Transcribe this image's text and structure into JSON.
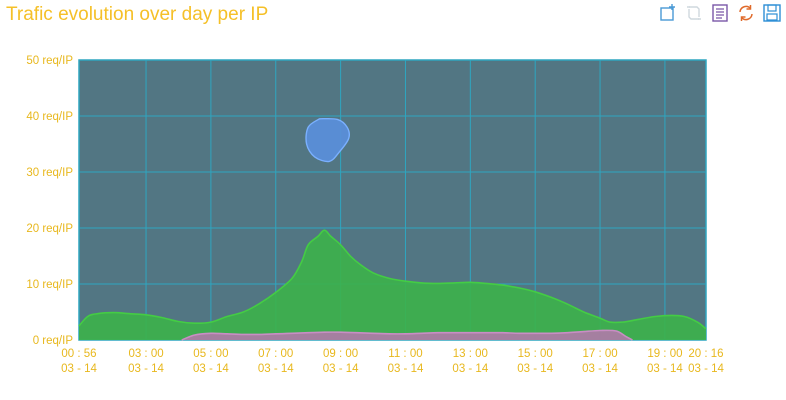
{
  "title": "Trafic evolution over day per IP",
  "toolbar": [
    {
      "name": "zoom-icon",
      "label": "Zoom"
    },
    {
      "name": "zoom-reset-icon",
      "label": "Reset zoom"
    },
    {
      "name": "data-view-icon",
      "label": "Data view"
    },
    {
      "name": "restore-icon",
      "label": "Restore"
    },
    {
      "name": "save-image-icon",
      "label": "Save as image"
    }
  ],
  "colors": {
    "plot_bg": "#527683",
    "grid": "#2ea6c0",
    "title": "#f5c028",
    "tick": "#e8b81e",
    "green_fill": "#3cb34a",
    "green_line": "#44cc44",
    "pink_fill": "#b07aa8",
    "pink_line": "#c98dc4",
    "blue_fill": "#5a8ed8",
    "blue_line": "#7ab0ff"
  },
  "chart_data": {
    "type": "area",
    "title": "Trafic evolution over day per IP",
    "y_unit": "req/IP",
    "ylim": [
      0,
      50
    ],
    "y_ticks": [
      0,
      10,
      20,
      30,
      40,
      50
    ],
    "y_tick_labels": [
      "0 req/IP",
      "10 req/IP",
      "20 req/IP",
      "30 req/IP",
      "40 req/IP",
      "50 req/IP"
    ],
    "xlim_hours": [
      0.933,
      20.267
    ],
    "x_ticks": [
      {
        "hour": 0.933,
        "time": "00 : 56",
        "date": "03 - 14"
      },
      {
        "hour": 3,
        "time": "03 : 00",
        "date": "03 - 14"
      },
      {
        "hour": 5,
        "time": "05 : 00",
        "date": "03 - 14"
      },
      {
        "hour": 7,
        "time": "07 : 00",
        "date": "03 - 14"
      },
      {
        "hour": 9,
        "time": "09 : 00",
        "date": "03 - 14"
      },
      {
        "hour": 11,
        "time": "11 : 00",
        "date": "03 - 14"
      },
      {
        "hour": 13,
        "time": "13 : 00",
        "date": "03 - 14"
      },
      {
        "hour": 15,
        "time": "15 : 00",
        "date": "03 - 14"
      },
      {
        "hour": 17,
        "time": "17 : 00",
        "date": "03 - 14"
      },
      {
        "hour": 19,
        "time": "19 : 00",
        "date": "03 - 14"
      },
      {
        "hour": 20.267,
        "time": "20 : 16",
        "date": "03 - 14"
      }
    ],
    "grid": true,
    "series": [
      {
        "name": "green",
        "points": [
          [
            0.933,
            2.5
          ],
          [
            1.2,
            4.2
          ],
          [
            1.5,
            4.7
          ],
          [
            2,
            4.9
          ],
          [
            2.5,
            4.7
          ],
          [
            3,
            4.5
          ],
          [
            3.5,
            4.0
          ],
          [
            4,
            3.3
          ],
          [
            4.5,
            3.0
          ],
          [
            5,
            3.2
          ],
          [
            5.5,
            4.2
          ],
          [
            6,
            5.0
          ],
          [
            6.5,
            6.5
          ],
          [
            7,
            8.5
          ],
          [
            7.5,
            11
          ],
          [
            7.8,
            14
          ],
          [
            8,
            17
          ],
          [
            8.3,
            18.5
          ],
          [
            8.5,
            19.6
          ],
          [
            8.7,
            18.5
          ],
          [
            9,
            17
          ],
          [
            9.3,
            15
          ],
          [
            9.6,
            13.5
          ],
          [
            10,
            12
          ],
          [
            10.5,
            11
          ],
          [
            11,
            10.5
          ],
          [
            11.5,
            10.2
          ],
          [
            12,
            10.1
          ],
          [
            12.5,
            10.2
          ],
          [
            13,
            10.3
          ],
          [
            13.5,
            10.1
          ],
          [
            14,
            9.8
          ],
          [
            14.5,
            9.3
          ],
          [
            15,
            8.6
          ],
          [
            15.5,
            7.6
          ],
          [
            16,
            6.4
          ],
          [
            16.5,
            5.0
          ],
          [
            17,
            3.9
          ],
          [
            17.3,
            3.2
          ],
          [
            17.7,
            3.2
          ],
          [
            18.2,
            3.7
          ],
          [
            18.7,
            4.2
          ],
          [
            19.2,
            4.4
          ],
          [
            19.6,
            4.2
          ],
          [
            20,
            3.2
          ],
          [
            20.267,
            2.0
          ]
        ]
      },
      {
        "name": "pink",
        "points": [
          [
            4.1,
            0
          ],
          [
            4.5,
            0.9
          ],
          [
            5,
            1.2
          ],
          [
            5.5,
            1.1
          ],
          [
            6,
            1.0
          ],
          [
            6.5,
            1.0
          ],
          [
            7,
            1.1
          ],
          [
            7.5,
            1.2
          ],
          [
            8,
            1.3
          ],
          [
            8.5,
            1.4
          ],
          [
            9,
            1.4
          ],
          [
            9.5,
            1.3
          ],
          [
            10,
            1.2
          ],
          [
            10.5,
            1.1
          ],
          [
            11,
            1.1
          ],
          [
            11.5,
            1.2
          ],
          [
            12,
            1.3
          ],
          [
            12.5,
            1.3
          ],
          [
            13,
            1.3
          ],
          [
            13.5,
            1.3
          ],
          [
            14,
            1.3
          ],
          [
            14.5,
            1.2
          ],
          [
            15,
            1.2
          ],
          [
            15.5,
            1.2
          ],
          [
            16,
            1.3
          ],
          [
            16.5,
            1.5
          ],
          [
            17,
            1.7
          ],
          [
            17.5,
            1.6
          ],
          [
            17.8,
            0.6
          ],
          [
            18.0,
            0
          ]
        ]
      },
      {
        "name": "blue",
        "blob": [
          [
            8.35,
            39.5
          ],
          [
            8.9,
            39.4
          ],
          [
            9.2,
            38
          ],
          [
            9.25,
            36
          ],
          [
            8.95,
            33.5
          ],
          [
            8.65,
            31.9
          ],
          [
            8.2,
            32.7
          ],
          [
            7.95,
            35
          ],
          [
            8.0,
            38
          ]
        ]
      }
    ]
  }
}
